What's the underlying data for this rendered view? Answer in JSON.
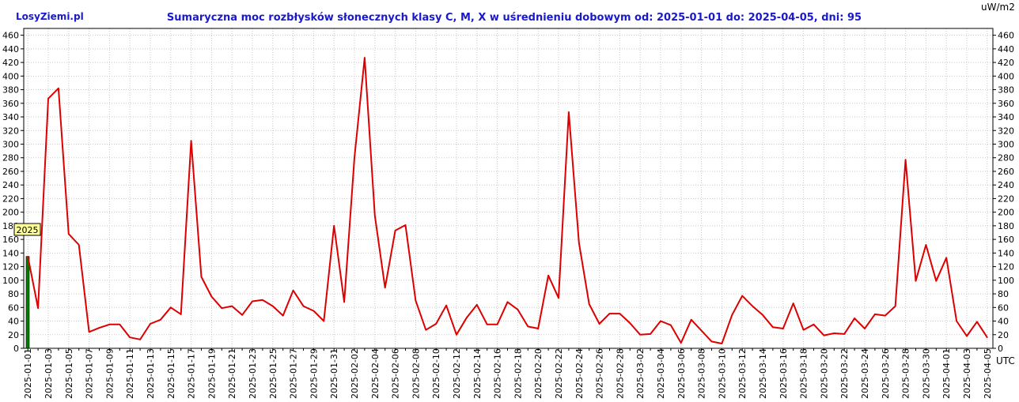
{
  "header": {
    "logo": "LosyZiemi.pl",
    "unit": "uW/m2",
    "utc_label": "UTC"
  },
  "chart_data": {
    "type": "line",
    "title": "Sumaryczna moc rozbłysków słonecznych klasy C, M, X w uśrednieniu dobowym od: 2025-01-01 do: 2025-04-05, dni: 95",
    "ylabel": "",
    "xlabel": "",
    "ylim": [
      0,
      460
    ],
    "y_ticks": [
      0,
      20,
      40,
      60,
      80,
      100,
      120,
      140,
      160,
      180,
      200,
      220,
      240,
      260,
      280,
      300,
      320,
      340,
      360,
      380,
      400,
      420,
      440,
      460
    ],
    "x_tick_labels": [
      "2025-01-01",
      "2025-01-03",
      "2025-01-05",
      "2025-01-07",
      "2025-01-09",
      "2025-01-11",
      "2025-01-13",
      "2025-01-15",
      "2025-01-17",
      "2025-01-19",
      "2025-01-21",
      "2025-01-23",
      "2025-01-25",
      "2025-01-27",
      "2025-01-29",
      "2025-01-31",
      "2025-02-02",
      "2025-02-04",
      "2025-02-06",
      "2025-02-08",
      "2025-02-10",
      "2025-02-12",
      "2025-02-14",
      "2025-02-16",
      "2025-02-18",
      "2025-02-20",
      "2025-02-22",
      "2025-02-24",
      "2025-02-26",
      "2025-02-28",
      "2025-03-02",
      "2025-03-04",
      "2025-03-06",
      "2025-03-08",
      "2025-03-10",
      "2025-03-12",
      "2025-03-14",
      "2025-03-16",
      "2025-03-18",
      "2025-03-20",
      "2025-03-22",
      "2025-03-24",
      "2025-03-26",
      "2025-03-28",
      "2025-03-30",
      "2025-04-01",
      "2025-04-03",
      "2025-04-05"
    ],
    "grid": true,
    "series": [
      {
        "color": "#dd0000",
        "values": [
          135,
          59,
          367,
          382,
          168,
          152,
          24,
          30,
          35,
          35,
          16,
          13,
          36,
          42,
          60,
          50,
          305,
          105,
          76,
          59,
          62,
          49,
          69,
          71,
          62,
          48,
          85,
          62,
          55,
          40,
          180,
          68,
          280,
          427,
          195,
          89,
          173,
          181,
          70,
          27,
          36,
          63,
          20,
          45,
          64,
          35,
          35,
          68,
          57,
          32,
          29,
          107,
          74,
          347,
          155,
          65,
          36,
          51,
          51,
          37,
          20,
          21,
          40,
          34,
          8,
          42,
          26,
          10,
          7,
          49,
          77,
          62,
          49,
          31,
          29,
          66,
          27,
          35,
          19,
          22,
          21,
          44,
          29,
          50,
          48,
          62,
          277,
          99,
          152,
          99,
          133,
          40,
          18,
          39,
          16
        ]
      }
    ],
    "year_marker": {
      "label": "2025",
      "color": "#008000",
      "value": 135
    }
  }
}
